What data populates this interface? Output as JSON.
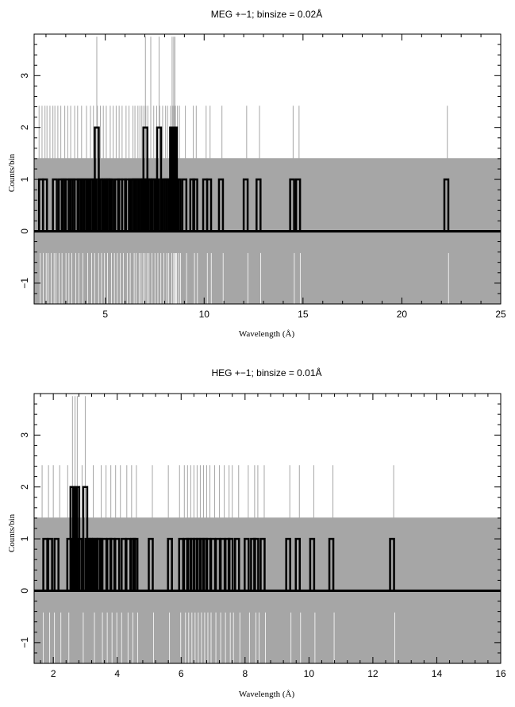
{
  "chart_data": [
    {
      "type": "histogram-with-error-bars",
      "title": "MEG +−1; binsize = 0.02Å",
      "xlabel": "Wavelength (Å)",
      "ylabel": "Counts/bin",
      "xlim": [
        1.4,
        25
      ],
      "ylim": [
        -1.4,
        3.8
      ],
      "xticks": [
        5,
        10,
        15,
        20,
        25
      ],
      "yticks": [
        -1,
        0,
        1,
        2,
        3
      ],
      "xtick_labels": [
        "5",
        "10",
        "15",
        "20",
        "25"
      ],
      "ytick_labels": [
        "−1",
        "0",
        "1",
        "2",
        "3"
      ],
      "error_band_upper": 1.41,
      "error_band_lower": -1.41,
      "colors": {
        "data": "#000000",
        "errors": "#a6a6a6"
      },
      "bins": [
        {
          "x": 1.75,
          "counts": 1
        },
        {
          "x": 1.95,
          "counts": 1
        },
        {
          "x": 2.45,
          "counts": 1
        },
        {
          "x": 2.75,
          "counts": 1
        },
        {
          "x": 2.9,
          "counts": 1
        },
        {
          "x": 3.05,
          "counts": 1
        },
        {
          "x": 3.25,
          "counts": 1
        },
        {
          "x": 3.35,
          "counts": 1
        },
        {
          "x": 3.55,
          "counts": 1
        },
        {
          "x": 3.7,
          "counts": 1
        },
        {
          "x": 3.85,
          "counts": 1
        },
        {
          "x": 4.0,
          "counts": 1
        },
        {
          "x": 4.15,
          "counts": 1
        },
        {
          "x": 4.3,
          "counts": 1
        },
        {
          "x": 4.45,
          "counts": 1
        },
        {
          "x": 4.57,
          "counts": 2
        },
        {
          "x": 4.75,
          "counts": 1
        },
        {
          "x": 4.85,
          "counts": 1
        },
        {
          "x": 4.97,
          "counts": 1
        },
        {
          "x": 5.1,
          "counts": 1
        },
        {
          "x": 5.2,
          "counts": 1
        },
        {
          "x": 5.3,
          "counts": 1
        },
        {
          "x": 5.6,
          "counts": 1
        },
        {
          "x": 5.75,
          "counts": 1
        },
        {
          "x": 5.95,
          "counts": 1
        },
        {
          "x": 6.1,
          "counts": 1
        },
        {
          "x": 6.3,
          "counts": 1
        },
        {
          "x": 6.4,
          "counts": 1
        },
        {
          "x": 6.5,
          "counts": 1
        },
        {
          "x": 6.6,
          "counts": 1
        },
        {
          "x": 6.7,
          "counts": 1
        },
        {
          "x": 6.8,
          "counts": 1
        },
        {
          "x": 6.9,
          "counts": 1
        },
        {
          "x": 6.97,
          "counts": 1
        },
        {
          "x": 7.03,
          "counts": 2
        },
        {
          "x": 7.1,
          "counts": 1
        },
        {
          "x": 7.2,
          "counts": 1
        },
        {
          "x": 7.3,
          "counts": 1
        },
        {
          "x": 7.45,
          "counts": 1
        },
        {
          "x": 7.6,
          "counts": 1
        },
        {
          "x": 7.72,
          "counts": 2
        },
        {
          "x": 7.9,
          "counts": 1
        },
        {
          "x": 8.0,
          "counts": 1
        },
        {
          "x": 8.1,
          "counts": 1
        },
        {
          "x": 8.2,
          "counts": 1
        },
        {
          "x": 8.3,
          "counts": 1
        },
        {
          "x": 8.38,
          "counts": 2
        },
        {
          "x": 8.46,
          "counts": 2
        },
        {
          "x": 8.52,
          "counts": 2
        },
        {
          "x": 8.6,
          "counts": 1
        },
        {
          "x": 8.7,
          "counts": 1
        },
        {
          "x": 9.0,
          "counts": 1
        },
        {
          "x": 9.4,
          "counts": 1
        },
        {
          "x": 9.55,
          "counts": 1
        },
        {
          "x": 10.05,
          "counts": 1
        },
        {
          "x": 10.25,
          "counts": 1
        },
        {
          "x": 10.85,
          "counts": 1
        },
        {
          "x": 12.1,
          "counts": 1
        },
        {
          "x": 12.75,
          "counts": 1
        },
        {
          "x": 14.45,
          "counts": 1
        },
        {
          "x": 14.75,
          "counts": 1
        },
        {
          "x": 22.25,
          "counts": 1
        }
      ],
      "error_spikes": [
        1.65,
        1.8,
        1.95,
        2.05,
        2.2,
        2.35,
        2.45,
        2.6,
        2.75,
        2.95,
        3.1,
        3.25,
        3.45,
        3.6,
        3.8,
        4.05,
        4.25,
        4.4,
        4.6,
        4.75,
        4.9,
        5.05,
        5.25,
        5.4,
        5.55,
        5.7,
        5.85,
        6.05,
        6.2,
        6.4,
        6.5,
        6.65,
        6.75,
        6.85,
        6.95,
        7.05,
        7.15,
        7.3,
        7.45,
        7.6,
        7.75,
        7.9,
        8.05,
        8.15,
        8.3,
        8.4,
        8.45,
        8.5,
        8.55,
        8.65,
        8.75,
        9.05,
        9.45,
        9.6,
        10.1,
        10.3,
        10.9,
        12.15,
        12.8,
        14.5,
        14.8,
        22.3
      ],
      "tall_error_spikes": [
        4.57,
        7.03,
        7.3,
        7.72,
        8.38,
        8.46,
        8.52
      ]
    },
    {
      "type": "histogram-with-error-bars",
      "title": "HEG +−1; binsize = 0.01Å",
      "xlabel": "Wavelength (Å)",
      "ylabel": "Counts/bin",
      "xlim": [
        1.4,
        16
      ],
      "ylim": [
        -1.4,
        3.8
      ],
      "xticks": [
        2,
        4,
        6,
        8,
        10,
        12,
        14,
        16
      ],
      "yticks": [
        -1,
        0,
        1,
        2,
        3
      ],
      "xtick_labels": [
        "2",
        "4",
        "6",
        "8",
        "10",
        "12",
        "14",
        "16"
      ],
      "ytick_labels": [
        "−1",
        "0",
        "1",
        "2",
        "3"
      ],
      "error_band_upper": 1.41,
      "error_band_lower": -1.41,
      "colors": {
        "data": "#000000",
        "errors": "#a6a6a6"
      },
      "bins": [
        {
          "x": 1.75,
          "counts": 1
        },
        {
          "x": 1.9,
          "counts": 1
        },
        {
          "x": 2.1,
          "counts": 1
        },
        {
          "x": 2.5,
          "counts": 1
        },
        {
          "x": 2.6,
          "counts": 2
        },
        {
          "x": 2.68,
          "counts": 2
        },
        {
          "x": 2.75,
          "counts": 2
        },
        {
          "x": 2.82,
          "counts": 1
        },
        {
          "x": 3.0,
          "counts": 2
        },
        {
          "x": 3.07,
          "counts": 1
        },
        {
          "x": 3.15,
          "counts": 1
        },
        {
          "x": 3.22,
          "counts": 1
        },
        {
          "x": 3.3,
          "counts": 1
        },
        {
          "x": 3.4,
          "counts": 1
        },
        {
          "x": 3.45,
          "counts": 1
        },
        {
          "x": 3.6,
          "counts": 1
        },
        {
          "x": 3.75,
          "counts": 1
        },
        {
          "x": 3.85,
          "counts": 1
        },
        {
          "x": 4.0,
          "counts": 1
        },
        {
          "x": 4.2,
          "counts": 1
        },
        {
          "x": 4.35,
          "counts": 1
        },
        {
          "x": 4.5,
          "counts": 1
        },
        {
          "x": 4.57,
          "counts": 1
        },
        {
          "x": 5.05,
          "counts": 1
        },
        {
          "x": 5.65,
          "counts": 1
        },
        {
          "x": 6.0,
          "counts": 1
        },
        {
          "x": 6.15,
          "counts": 1
        },
        {
          "x": 6.25,
          "counts": 1
        },
        {
          "x": 6.35,
          "counts": 1
        },
        {
          "x": 6.45,
          "counts": 1
        },
        {
          "x": 6.55,
          "counts": 1
        },
        {
          "x": 6.65,
          "counts": 1
        },
        {
          "x": 6.75,
          "counts": 1
        },
        {
          "x": 6.85,
          "counts": 1
        },
        {
          "x": 7.0,
          "counts": 1
        },
        {
          "x": 7.15,
          "counts": 1
        },
        {
          "x": 7.3,
          "counts": 1
        },
        {
          "x": 7.45,
          "counts": 1
        },
        {
          "x": 7.55,
          "counts": 1
        },
        {
          "x": 7.75,
          "counts": 1
        },
        {
          "x": 8.05,
          "counts": 1
        },
        {
          "x": 8.25,
          "counts": 1
        },
        {
          "x": 8.35,
          "counts": 1
        },
        {
          "x": 8.55,
          "counts": 1
        },
        {
          "x": 9.35,
          "counts": 1
        },
        {
          "x": 9.65,
          "counts": 1
        },
        {
          "x": 10.1,
          "counts": 1
        },
        {
          "x": 10.7,
          "counts": 1
        },
        {
          "x": 12.6,
          "counts": 1
        }
      ],
      "error_spikes": [
        1.65,
        1.85,
        2.0,
        2.2,
        2.45,
        2.9,
        3.25,
        3.5,
        3.65,
        3.8,
        3.95,
        4.1,
        4.3,
        4.45,
        4.6,
        5.1,
        5.6,
        5.95,
        6.1,
        6.2,
        6.3,
        6.4,
        6.5,
        6.6,
        6.7,
        6.8,
        6.9,
        7.05,
        7.2,
        7.35,
        7.5,
        7.6,
        7.8,
        8.1,
        8.3,
        8.4,
        8.6,
        9.4,
        9.7,
        10.15,
        10.75,
        12.65
      ],
      "tall_error_spikes": [
        2.6,
        2.68,
        2.75,
        3.0
      ]
    }
  ]
}
